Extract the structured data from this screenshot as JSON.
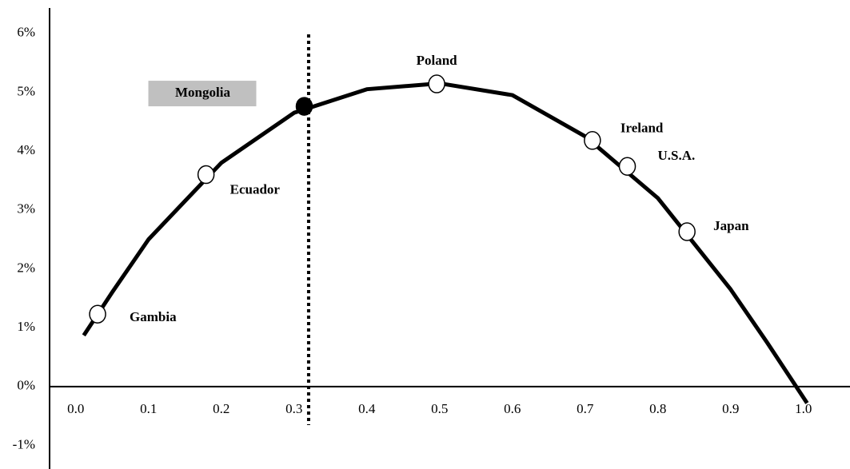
{
  "chart_data": {
    "type": "scatter",
    "x": [
      0.03,
      0.179,
      0.314,
      0.496,
      0.71,
      0.758,
      0.84
    ],
    "values": [
      1.23,
      3.6,
      4.76,
      5.14,
      4.18,
      3.74,
      2.63
    ],
    "point_labels": [
      "Gambia",
      "Ecuador",
      "Mongolia",
      "Poland",
      "Ireland",
      "U.S.A.",
      "Japan"
    ],
    "marker_colors": [
      "#ffffff",
      "#ffffff",
      "#000000",
      "#ffffff",
      "#ffffff",
      "#ffffff",
      "#ffffff"
    ],
    "label_backgrounds": [
      null,
      null,
      "#c0c0c0",
      null,
      null,
      null,
      null
    ],
    "curve": {
      "color": "#000000",
      "x": [
        0.011,
        0.05,
        0.1,
        0.2,
        0.3,
        0.4,
        0.5,
        0.6,
        0.7,
        0.8,
        0.9,
        0.95,
        1.005
      ],
      "values": [
        0.87,
        1.6,
        2.5,
        3.8,
        4.65,
        5.05,
        5.15,
        4.95,
        4.25,
        3.2,
        1.65,
        0.75,
        -0.28
      ]
    },
    "vline": 0.32,
    "xlim": [
      -0.036,
      1.064
    ],
    "ylim": [
      -1.4,
      6.43
    ],
    "xticks": [
      {
        "value": 0,
        "label": "0.0"
      },
      0.1,
      0.2,
      0.3,
      0.4,
      0.5,
      0.6,
      0.7,
      0.8,
      0.9,
      {
        "value": 1,
        "label": "1.0"
      }
    ],
    "yticks": [
      {
        "value": -1,
        "label": "-1%"
      },
      {
        "value": 0,
        "label": "0%"
      },
      {
        "value": 1,
        "label": "1%"
      },
      {
        "value": 2,
        "label": "2%"
      },
      {
        "value": 3,
        "label": "3%"
      },
      {
        "value": 4,
        "label": "4%"
      },
      {
        "value": 5,
        "label": "5%"
      },
      {
        "value": 6,
        "label": "6%"
      }
    ]
  }
}
